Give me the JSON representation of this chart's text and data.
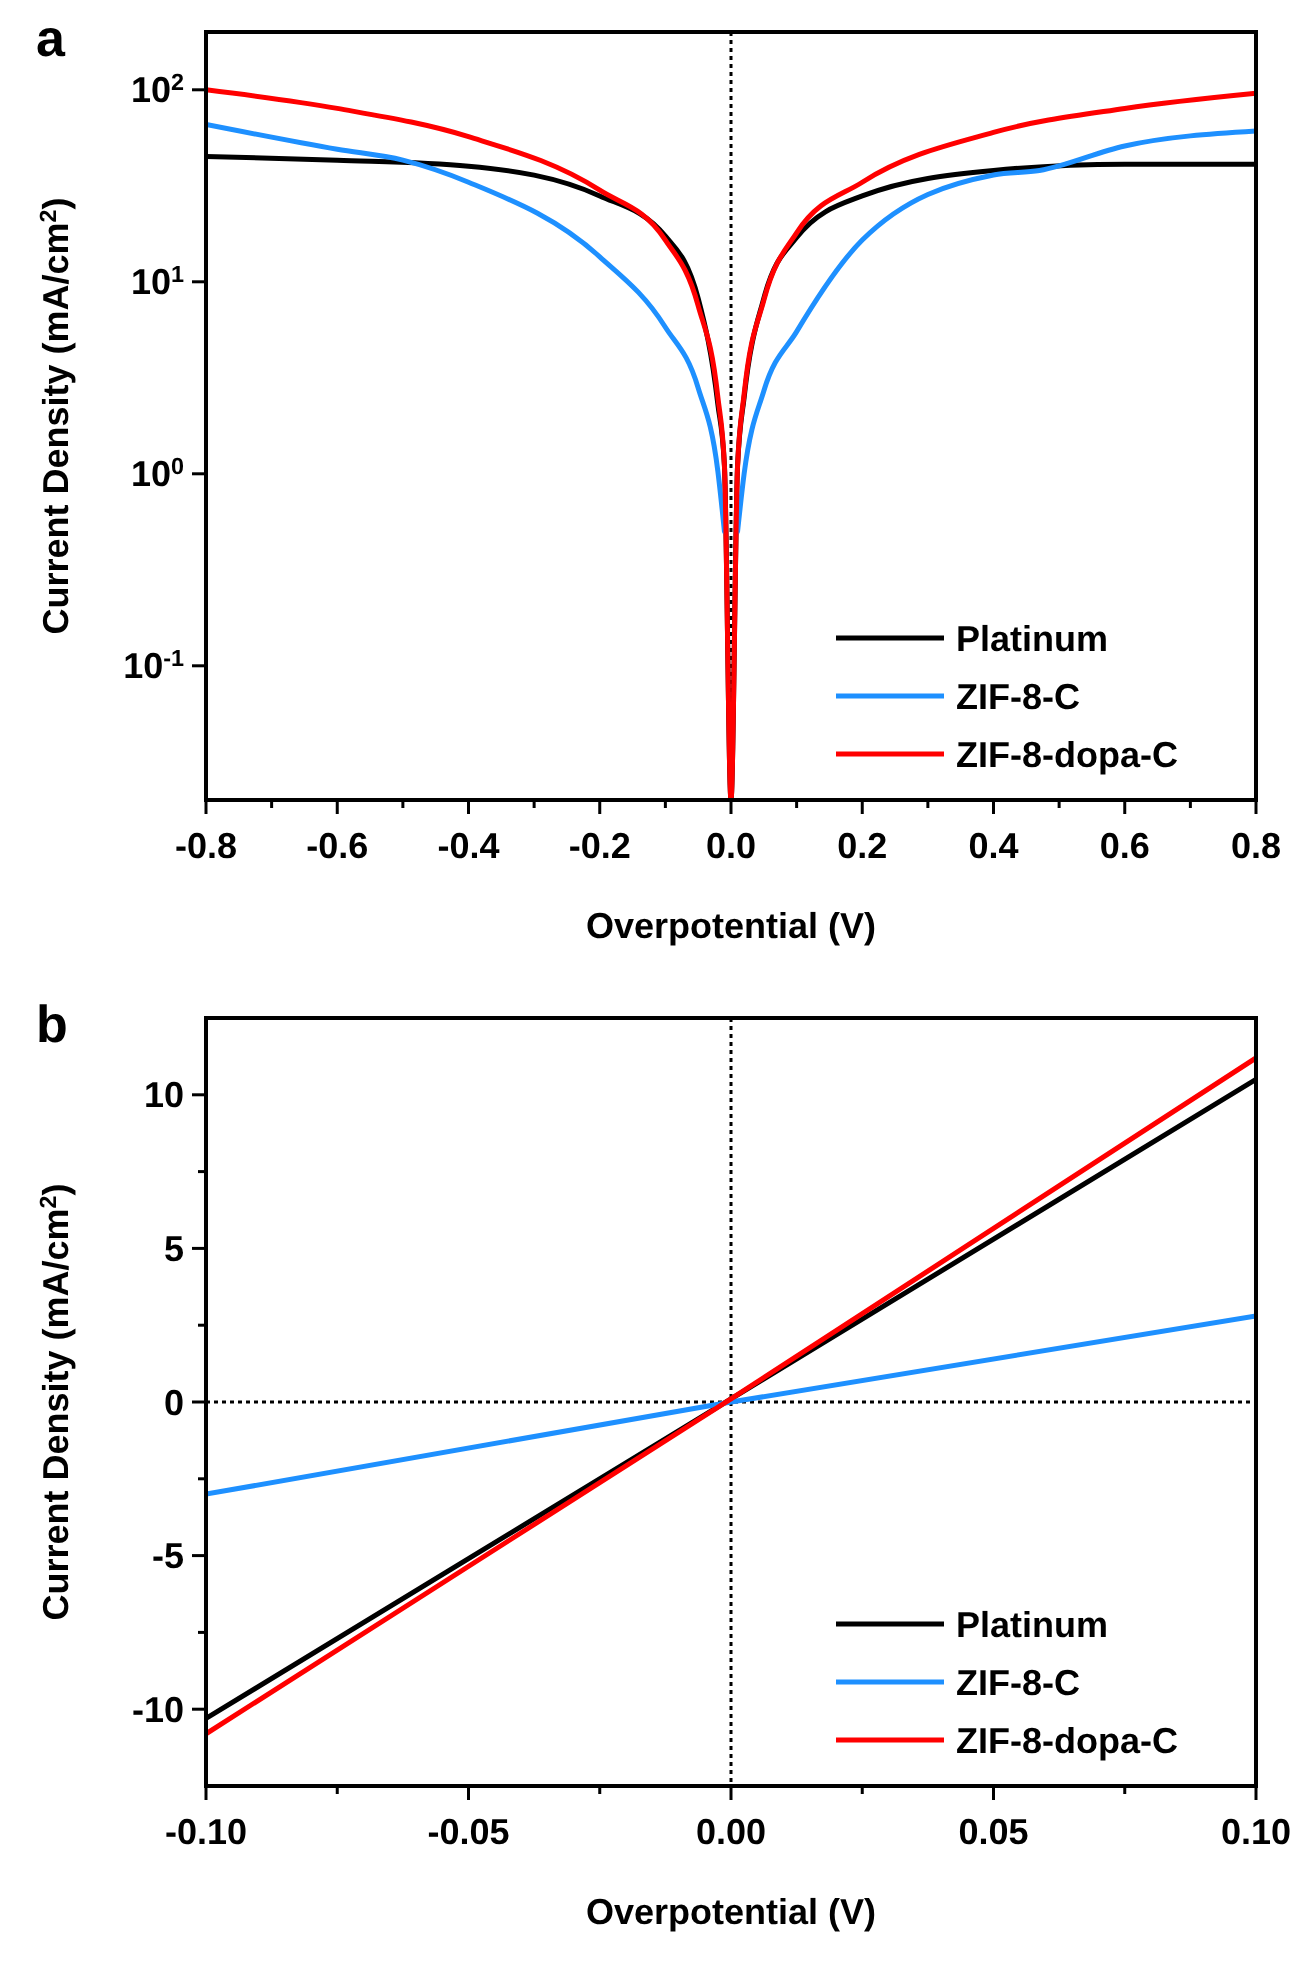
{
  "chart_data": [
    {
      "type": "line",
      "title": "a",
      "xlabel": "Overpotential (V)",
      "ylabel": "Current Density (mA/cm$^{2}$)",
      "log": "y",
      "xlim": [
        -0.8,
        0.8
      ],
      "ylim": [
        0.02,
        200
      ],
      "xticks": [
        -0.8,
        {
          "value": -0.7,
          "label": null
        },
        -0.6,
        {
          "value": -0.5,
          "label": null
        },
        -0.4,
        {
          "value": -0.3,
          "label": null
        },
        -0.2,
        {
          "value": -0.1,
          "label": null
        },
        {
          "value": 0,
          "label": "0.0"
        },
        {
          "value": 0.1,
          "label": null
        },
        0.2,
        {
          "value": 0.3,
          "label": null
        },
        0.4,
        {
          "value": 0.5,
          "label": null
        },
        0.6,
        {
          "value": 0.7,
          "label": null
        },
        0.8
      ],
      "yticks": [
        {
          "value": 0.1,
          "label": "10$^{-1}$"
        },
        {
          "value": 1,
          "label": "10$^{0}$"
        },
        {
          "value": 10,
          "label": "10$^{1}$"
        },
        {
          "value": 100,
          "label": "10$^{2}$"
        }
      ],
      "grid": false,
      "legend": "bottom right",
      "marker": "none",
      "line_style": "solid",
      "ref_lines": [
        {
          "axis": "x",
          "value": 0,
          "line_style": "dotted",
          "color": "#000000"
        }
      ],
      "series": [
        {
          "name": "Platinum",
          "color": "#000000",
          "x": [
            -0.8,
            -0.6,
            -0.4,
            -0.2,
            -0.1,
            -0.05,
            -0.02,
            -0.01,
            0,
            0.01,
            0.02,
            0.05,
            0.1,
            0.2,
            0.4,
            0.6,
            0.8
          ],
          "values": [
            45,
            43,
            40,
            28,
            17.3,
            8.2,
            2.3,
            1.1,
            0.02,
            1.1,
            2.5,
            8.2,
            17,
            28,
            38,
            41,
            41
          ]
        },
        {
          "name": "ZIF-8-C",
          "color": "#1e90ff",
          "x": [
            -0.8,
            -0.6,
            -0.5,
            -0.4,
            -0.2,
            -0.1,
            -0.05,
            -0.02,
            -0.01,
            0,
            0.01,
            0.02,
            0.05,
            0.1,
            0.2,
            0.4,
            0.47,
            0.6,
            0.8
          ],
          "values": [
            66,
            49,
            43,
            33,
            13.5,
            5.8,
            2.8,
            1.03,
            0.5,
            null,
            0.5,
            1.0,
            2.7,
            5.5,
            16.5,
            36,
            38,
            51,
            61
          ]
        },
        {
          "name": "ZIF-8-dopa-C",
          "color": "#ff0000",
          "x": [
            -0.8,
            -0.6,
            -0.4,
            -0.2,
            -0.1,
            -0.05,
            -0.02,
            -0.01,
            0,
            0.01,
            0.02,
            0.05,
            0.1,
            0.2,
            0.4,
            0.6,
            0.8
          ],
          "values": [
            100,
            80,
            57,
            30,
            16.5,
            7.5,
            2.5,
            1.1,
            0.02,
            1.1,
            2.6,
            8,
            18,
            33,
            60,
            80,
            96
          ]
        }
      ]
    },
    {
      "type": "line",
      "title": "b",
      "xlabel": "Overpotential (V)",
      "ylabel": "Current Density (mA/cm$^{2}$)",
      "xlim": [
        -0.1,
        0.1
      ],
      "ylim": [
        -12.5,
        12.5
      ],
      "xticks": [
        {
          "value": -0.1,
          "label": "-0.10"
        },
        {
          "value": -0.075,
          "label": null
        },
        {
          "value": -0.05,
          "label": "-0.05"
        },
        {
          "value": -0.025,
          "label": null
        },
        {
          "value": 0,
          "label": "0.00"
        },
        {
          "value": 0.025,
          "label": null
        },
        {
          "value": 0.05,
          "label": "0.05"
        },
        {
          "value": 0.075,
          "label": null
        },
        {
          "value": 0.1,
          "label": "0.10"
        }
      ],
      "yticks": [
        -10,
        {
          "value": -7.5,
          "label": null
        },
        -5,
        {
          "value": -2.5,
          "label": null
        },
        0,
        {
          "value": 2.5,
          "label": null
        },
        5,
        {
          "value": 7.5,
          "label": null
        },
        10
      ],
      "grid": false,
      "legend": "bottom right",
      "marker": "none",
      "line_style": "solid",
      "ref_lines": [
        {
          "axis": "x",
          "value": 0,
          "line_style": "dotted",
          "color": "#000000"
        },
        {
          "axis": "y",
          "value": 0,
          "line_style": "dotted",
          "color": "#000000"
        }
      ],
      "series": [
        {
          "name": "Platinum",
          "color": "#000000",
          "x": [
            -0.1,
            0,
            0.1
          ],
          "values": [
            -10.3,
            0.1,
            10.5
          ]
        },
        {
          "name": "ZIF-8-C",
          "color": "#1e90ff",
          "x": [
            -0.1,
            0,
            0.1
          ],
          "values": [
            -3.0,
            0,
            2.8
          ]
        },
        {
          "name": "ZIF-8-dopa-C",
          "color": "#ff0000",
          "x": [
            -0.1,
            0,
            0.1
          ],
          "values": [
            -10.8,
            0.1,
            11.2
          ]
        }
      ]
    }
  ]
}
